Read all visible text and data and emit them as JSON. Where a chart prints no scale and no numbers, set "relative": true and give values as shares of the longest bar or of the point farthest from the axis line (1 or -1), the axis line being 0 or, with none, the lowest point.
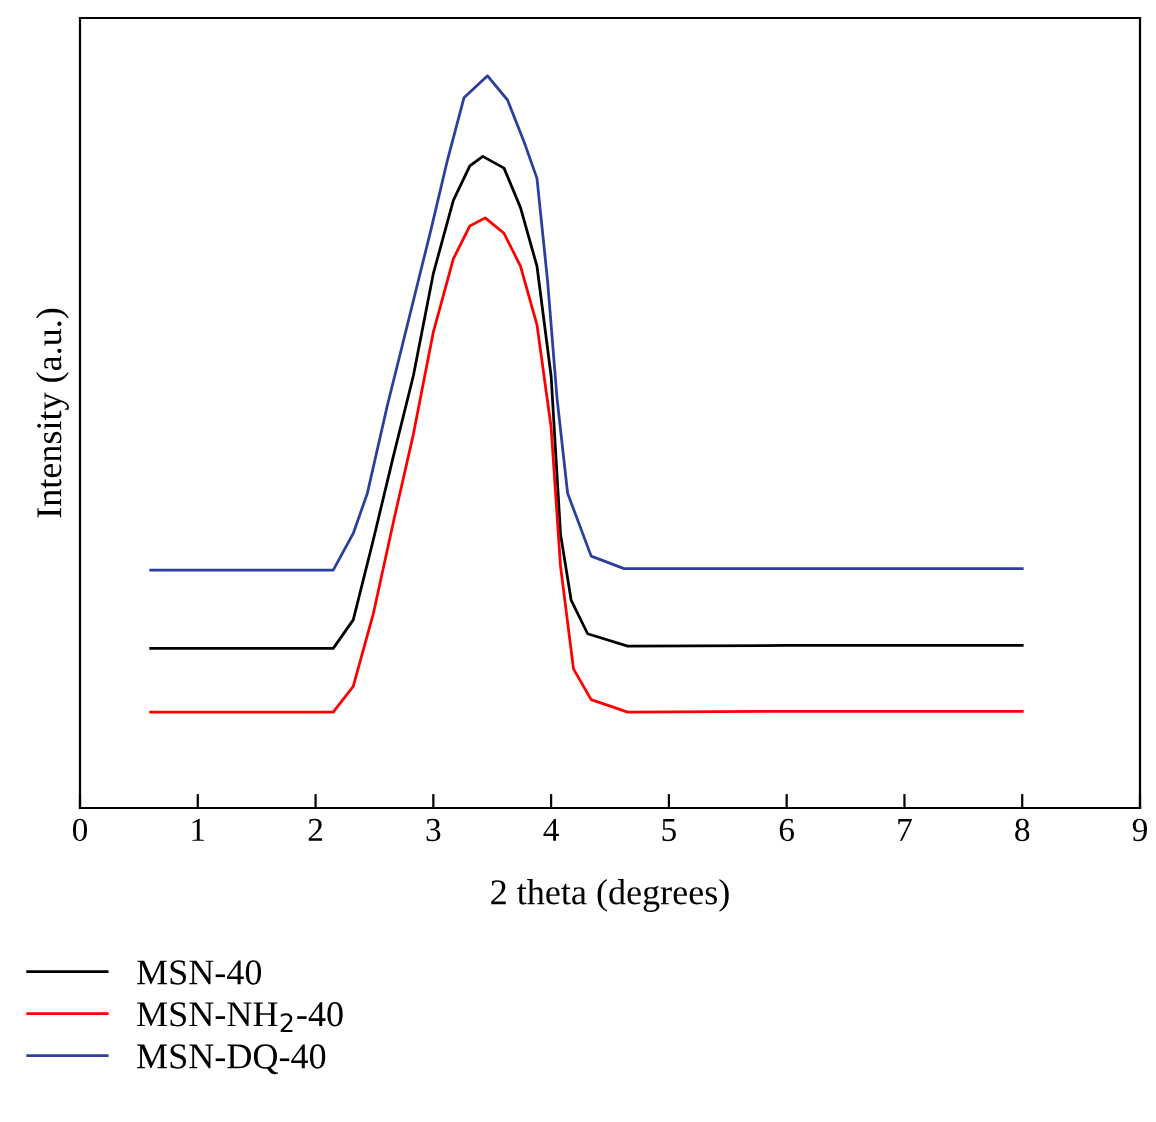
{
  "chart_data": {
    "type": "line",
    "relative": true,
    "xlabel": "2 theta (degrees)",
    "ylabel": "Intensity (a.u.)",
    "xlim": [
      0,
      9
    ],
    "xticks": [
      0,
      1,
      2,
      3,
      4,
      5,
      6,
      7,
      8,
      9
    ],
    "grid": false,
    "legend": "bottom",
    "marker": "none",
    "line_style": "solid",
    "series": [
      {
        "name": "MSN-40",
        "color": "#000000",
        "x": [
          0.6,
          2.15,
          2.32,
          2.49,
          2.66,
          2.83,
          3.0,
          3.17,
          3.31,
          3.42,
          3.6,
          3.74,
          3.88,
          4.0,
          4.08,
          4.17,
          4.31,
          4.65,
          6.0,
          8.0
        ],
        "values": [
          0.218,
          0.218,
          0.257,
          0.366,
          0.48,
          0.59,
          0.73,
          0.83,
          0.877,
          0.89,
          0.874,
          0.82,
          0.74,
          0.59,
          0.374,
          0.284,
          0.238,
          0.221,
          0.222,
          0.222
        ]
      },
      {
        "name": "MSN-NH$_{2}$-40",
        "color": "#ff0000",
        "x": [
          0.6,
          2.15,
          2.32,
          2.49,
          2.66,
          2.83,
          3.0,
          3.17,
          3.31,
          3.44,
          3.6,
          3.74,
          3.88,
          4.0,
          4.08,
          4.19,
          4.34,
          4.65,
          6.0,
          8.0
        ],
        "values": [
          0.131,
          0.131,
          0.166,
          0.265,
          0.39,
          0.51,
          0.65,
          0.75,
          0.795,
          0.806,
          0.785,
          0.74,
          0.66,
          0.52,
          0.33,
          0.19,
          0.148,
          0.131,
          0.132,
          0.132
        ]
      },
      {
        "name": "MSN-DQ-40",
        "color": "#2b3f9e",
        "x": [
          0.6,
          2.15,
          2.32,
          2.44,
          2.61,
          2.78,
          2.98,
          3.12,
          3.26,
          3.46,
          3.63,
          3.77,
          3.88,
          3.97,
          4.05,
          4.14,
          4.34,
          4.62,
          6.0,
          8.0
        ],
        "values": [
          0.325,
          0.325,
          0.375,
          0.43,
          0.55,
          0.66,
          0.79,
          0.885,
          0.97,
          1.0,
          0.967,
          0.91,
          0.86,
          0.72,
          0.56,
          0.43,
          0.344,
          0.327,
          0.327,
          0.327
        ]
      }
    ]
  }
}
